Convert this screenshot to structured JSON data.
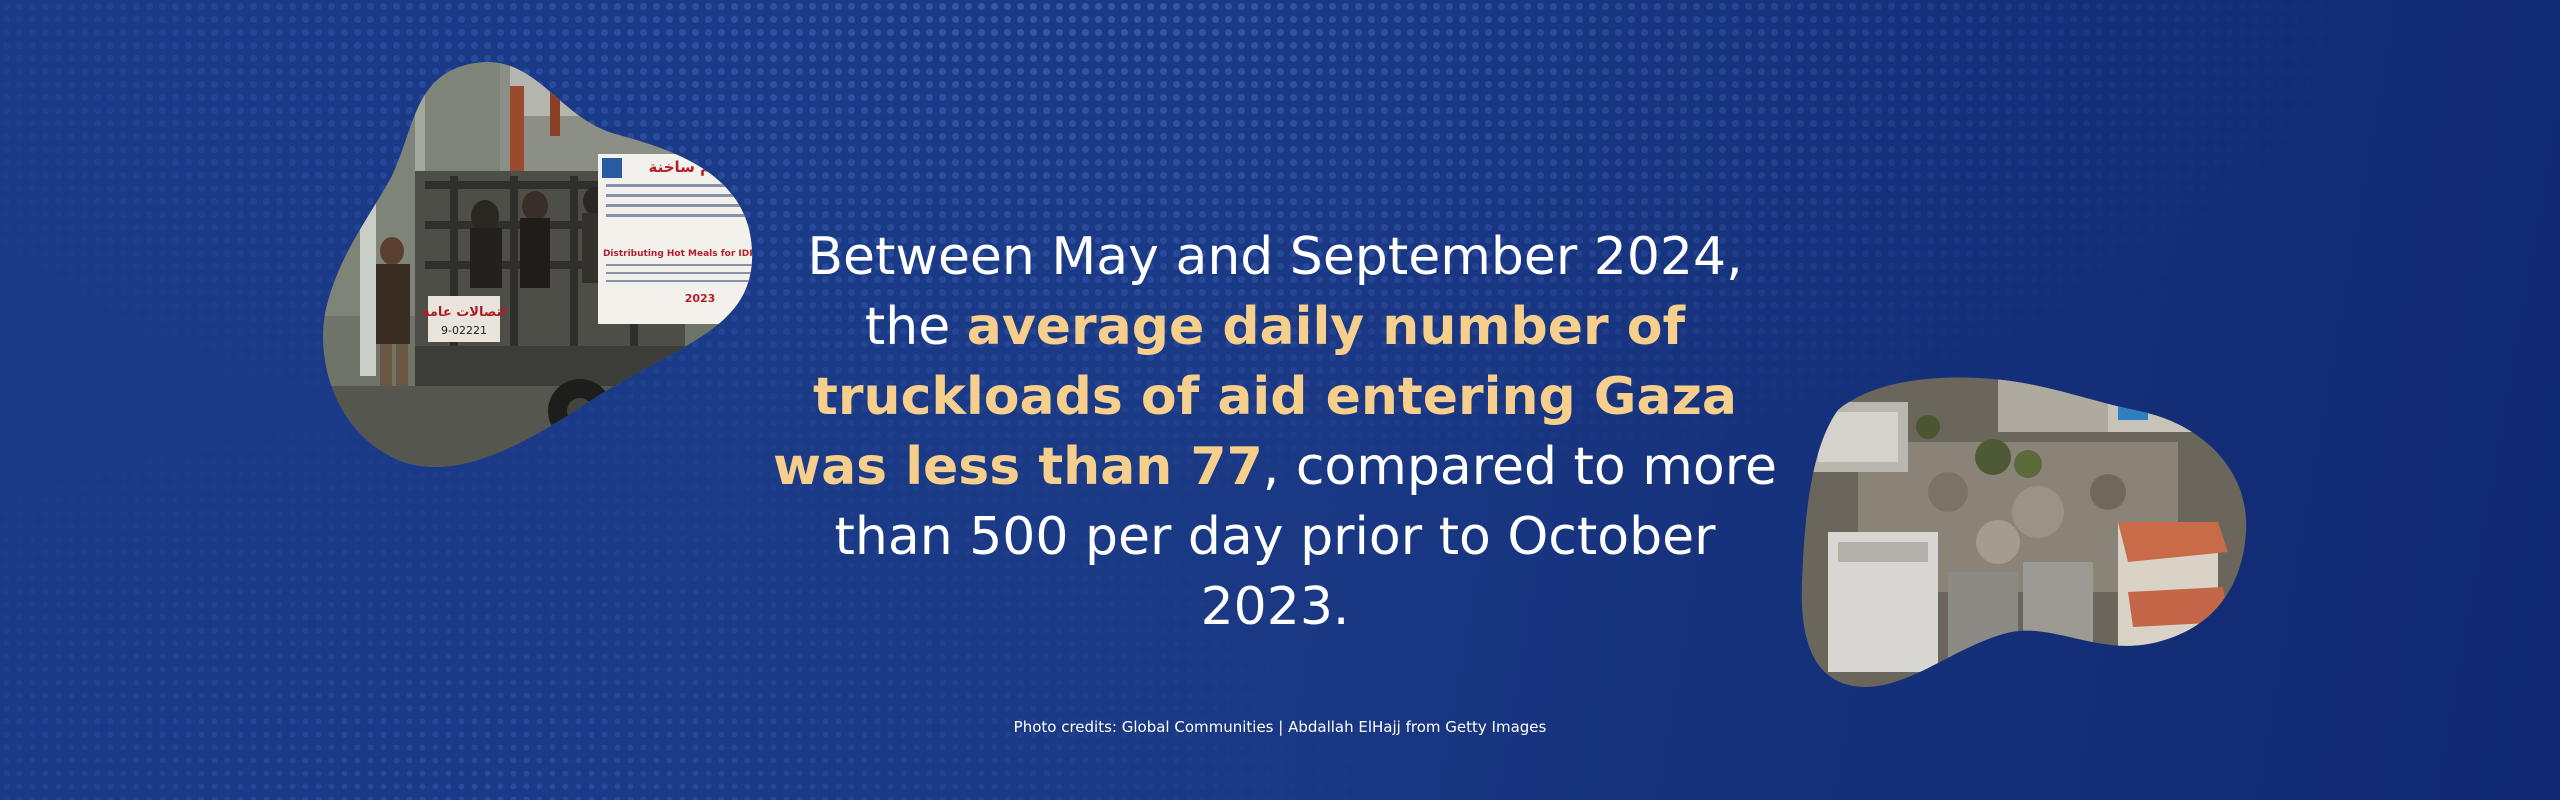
{
  "headline": {
    "part1": "Between May and September 2024, the ",
    "highlight": "average daily number of truckloads of aid entering Gaza was less than 77",
    "part2": ", compared to more than 500 per day prior to October 2023."
  },
  "photo1": {
    "banner_arabic": "وجبات طعام ساخنة",
    "banner_english": "Distributing Hot Meals for IDPs",
    "banner_year": "2023",
    "truck_sign": "اتصالات عامة"
  },
  "credits": "Photo credits: Global Communities | Abdallah ElHajj from Getty Images",
  "colors": {
    "background": "#16307a",
    "highlight": "#f6cf8c",
    "text": "#ffffff"
  }
}
